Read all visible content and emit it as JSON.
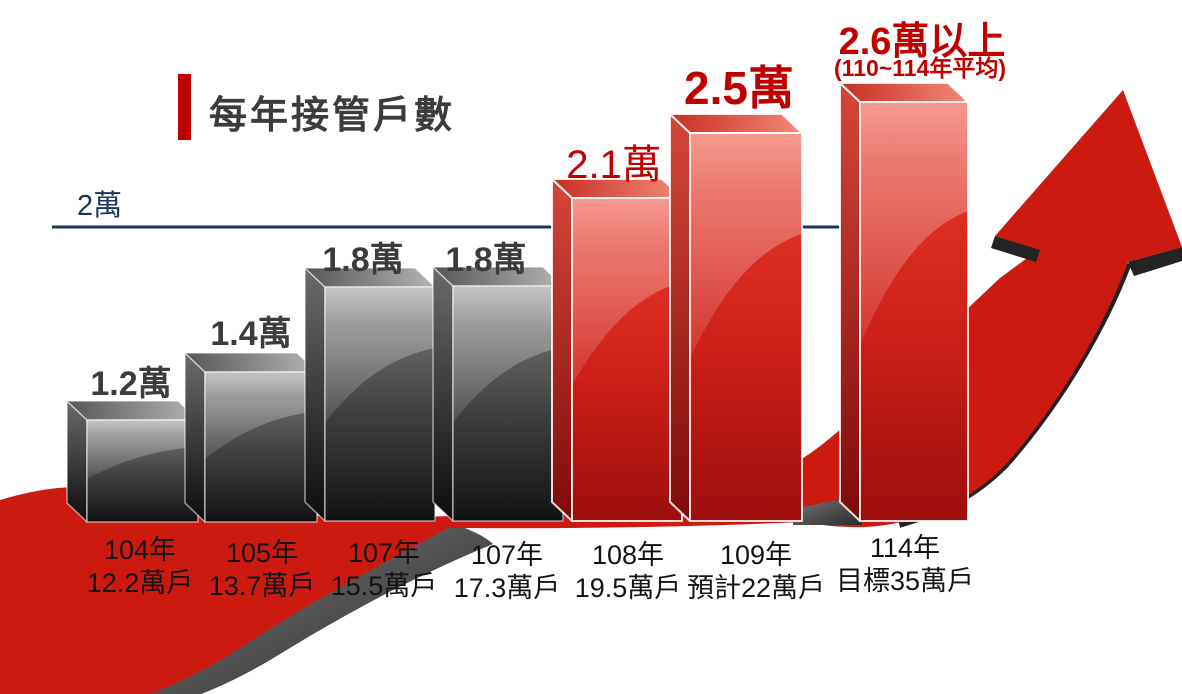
{
  "header": {
    "title": "每年接管戶數",
    "accent_color": "#c00000"
  },
  "threshold": {
    "label": "2萬",
    "value": 2,
    "line_color": "#1c355e"
  },
  "colors": {
    "bar_gray_front": "#5a5a5a",
    "bar_red_front": "#d6261a",
    "swoosh_red": "#cd1a10",
    "swoosh_underside_gray": "#4f4f4f",
    "arrow_edge_black": "#232323",
    "value_label_gray": "#3c3c3c",
    "value_label_red": "#c00000",
    "axis_label_black": "#141414",
    "threshold_navy": "#1c355e"
  },
  "chart_data": {
    "type": "bar",
    "title": "每年接管戶數",
    "xlabel": "",
    "ylabel": "每年接管戶數 (萬)",
    "ylim": [
      0,
      3
    ],
    "grid": false,
    "legend": "none",
    "threshold_line": {
      "label": "2萬",
      "value": 2
    },
    "categories": [
      "104年",
      "105年",
      "107年",
      "107年",
      "108年",
      "109年",
      "114年"
    ],
    "values": [
      1.2,
      1.4,
      1.8,
      1.8,
      2.1,
      2.5,
      2.6
    ],
    "bars": [
      {
        "year_label": "104年",
        "cumulative_label": "12.2萬戶",
        "value_label": "1.2萬",
        "value": 1.2,
        "series": "past",
        "color": "gray"
      },
      {
        "year_label": "105年",
        "cumulative_label": "13.7萬戶",
        "value_label": "1.4萬",
        "value": 1.4,
        "series": "past",
        "color": "gray"
      },
      {
        "year_label": "107年",
        "cumulative_label": "15.5萬戶",
        "value_label": "1.8萬",
        "value": 1.8,
        "series": "past",
        "color": "gray"
      },
      {
        "year_label": "107年",
        "cumulative_label": "17.3萬戶",
        "value_label": "1.8萬",
        "value": 1.8,
        "series": "past",
        "color": "gray"
      },
      {
        "year_label": "108年",
        "cumulative_label": "19.5萬戶",
        "value_label": "2.1萬",
        "value": 2.1,
        "series": "highlight",
        "color": "red"
      },
      {
        "year_label": "109年",
        "cumulative_label": "預計22萬戶",
        "value_label": "2.5萬",
        "value": 2.5,
        "series": "highlight",
        "color": "red"
      },
      {
        "year_label": "114年",
        "cumulative_label": "目標35萬戶",
        "value_label": "2.6萬以上",
        "value_sub_label": "(110~114年平均)",
        "value": 2.6,
        "series": "target",
        "color": "red"
      }
    ]
  }
}
